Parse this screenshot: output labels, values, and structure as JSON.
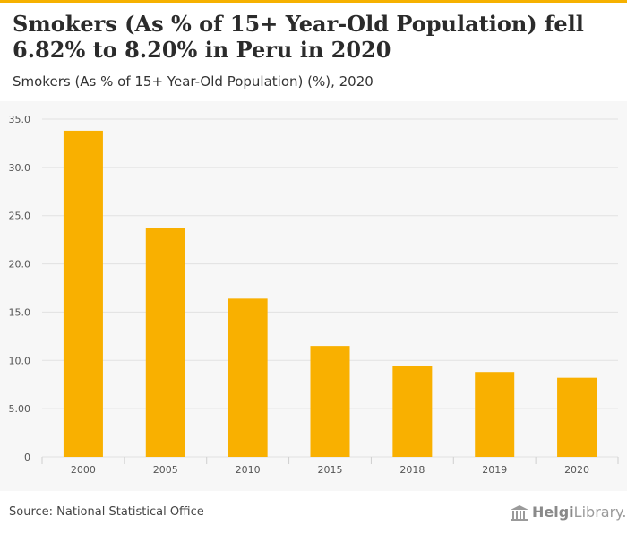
{
  "title": "Smokers (As % of 15+ Year-Old Population) fell 6.82% to 8.20% in Peru in 2020",
  "subtitle": "Smokers (As % of 15+ Year-Old Population) (%), 2020",
  "source": "Source: National Statistical Office",
  "logo": {
    "brand_bold": "Helgi",
    "brand_rest": "Library."
  },
  "colors": {
    "bar": "#f9b000",
    "accent": "#f6b100",
    "grid": "#e2e2e2",
    "background": "#f7f7f7"
  },
  "chart_data": {
    "type": "bar",
    "categories": [
      "2000",
      "2005",
      "2010",
      "2015",
      "2018",
      "2019",
      "2020"
    ],
    "values": [
      33.8,
      23.7,
      16.4,
      11.5,
      9.4,
      8.8,
      8.2
    ],
    "ylim": [
      0,
      35
    ],
    "yticks": [
      0,
      5,
      10,
      15,
      20,
      25,
      30,
      35
    ],
    "ytick_labels": [
      "0",
      "5.00",
      "10.0",
      "15.0",
      "20.0",
      "25.0",
      "30.0",
      "35.0"
    ],
    "grid": true
  }
}
